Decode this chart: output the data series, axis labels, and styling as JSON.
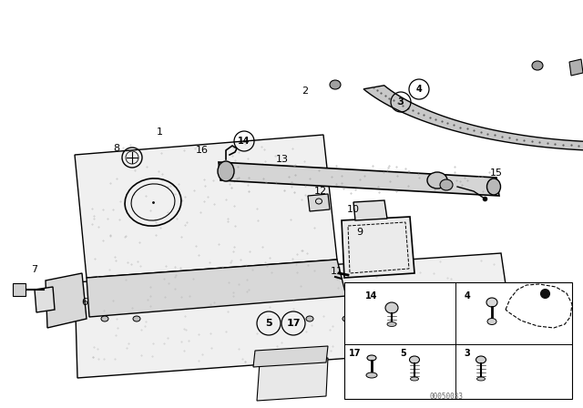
{
  "bg_color": "#ffffff",
  "fig_width": 6.4,
  "fig_height": 4.48,
  "dpi": 100,
  "line_color": "#000000",
  "text_color": "#000000",
  "watermark": "00050033",
  "font_size": 8,
  "shelf_color": "#f0f0f0",
  "shelf_dark": "#d8d8d8",
  "hatch_color": "#666666"
}
